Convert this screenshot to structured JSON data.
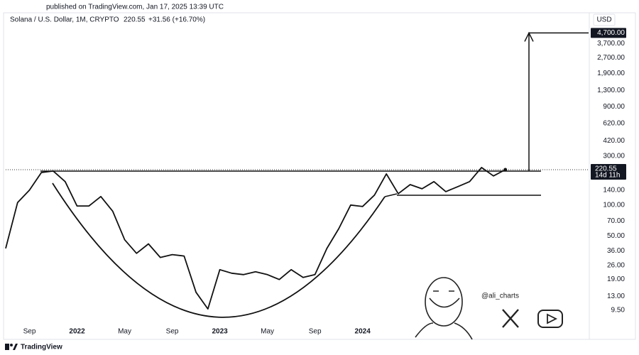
{
  "published": "published on TradingView.com, Jan 17, 2025 13:39 UTC",
  "brand": "TradingView",
  "watermark": "@ali_charts",
  "chart_data": {
    "type": "line",
    "title": "Solana / U.S. Dollar, 1M, CRYPTO",
    "last_value": 220.55,
    "change_label": "+31.56 (+16.70%)",
    "countdown": "14d 11h",
    "currency": "USD",
    "color": "#111111",
    "log_scale": true,
    "grid": false,
    "categories": [
      null,
      null,
      "Sep",
      null,
      null,
      null,
      "2022",
      null,
      null,
      null,
      "May",
      null,
      null,
      null,
      "Sep",
      null,
      null,
      null,
      "2023",
      null,
      null,
      null,
      "May",
      null,
      null,
      null,
      "Sep",
      null,
      null,
      null,
      "2024",
      null,
      null,
      null,
      null,
      null,
      null,
      null,
      null,
      null,
      null,
      null,
      null,
      null,
      null,
      null,
      null,
      null,
      null,
      null
    ],
    "values": [
      37.9,
      106,
      140,
      207,
      214,
      169,
      98,
      98,
      121,
      87,
      46,
      34,
      42,
      31,
      33,
      32,
      14.2,
      9.8,
      23.6,
      21.8,
      21.1,
      22.5,
      21.1,
      18.9,
      23.6,
      19.8,
      21.1,
      37.9,
      59,
      100,
      97,
      125,
      201,
      129,
      158,
      144,
      169,
      135,
      151,
      169,
      232,
      192,
      220.55,
      null,
      null,
      null,
      null,
      null,
      null,
      null
    ],
    "ylim": [
      5.2,
      6100
    ],
    "yticks": [
      {
        "value": 9.5,
        "label": "9.50"
      },
      {
        "value": 13,
        "label": "13.00"
      },
      {
        "value": 19,
        "label": "19.00"
      },
      {
        "value": 26,
        "label": "26.00"
      },
      {
        "value": 36,
        "label": "36.00"
      },
      {
        "value": 50,
        "label": "50.00"
      },
      {
        "value": 70,
        "label": "70.00"
      },
      {
        "value": 100,
        "label": "100.00"
      },
      {
        "value": 140,
        "label": "140.00"
      },
      {
        "value": 300,
        "label": "300.00"
      },
      {
        "value": 420,
        "label": "420.00"
      },
      {
        "value": 620,
        "label": "620.00"
      },
      {
        "value": 900,
        "label": "900.00"
      },
      {
        "value": 1300,
        "label": "1,300.00"
      },
      {
        "value": 1900,
        "label": "1,900.00"
      },
      {
        "value": 2700,
        "label": "2,700.00"
      },
      {
        "value": 3700,
        "label": "3,700.00"
      }
    ],
    "target": {
      "value": 4700,
      "label": "4,700.00"
    }
  }
}
